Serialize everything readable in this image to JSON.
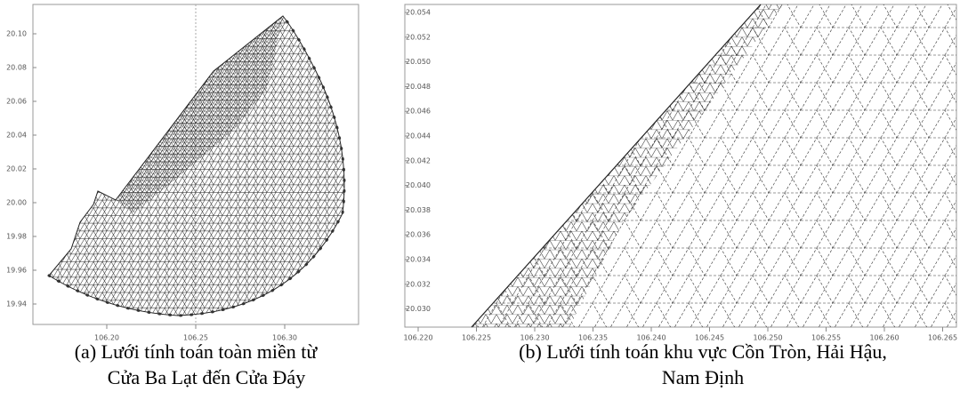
{
  "figure_a": {
    "y_ticks": [
      "20.10",
      "20.08",
      "20.06",
      "20.04",
      "20.02",
      "20.00",
      "19.98",
      "19.96",
      "19.94"
    ],
    "x_ticks": [
      "106.20",
      "106.25",
      "106.30"
    ],
    "caption": [
      "(a) Lưới tính toán toàn miền từ",
      "Cửa Ba Lạt đến Cửa Đáy"
    ]
  },
  "figure_b": {
    "y_ticks": [
      "20.054",
      "20.052",
      "20.050",
      "20.048",
      "20.046",
      "20.044",
      "20.042",
      "20.040",
      "20.038",
      "20.036",
      "20.034",
      "20.032",
      "20.030"
    ],
    "x_ticks": [
      "106.220",
      "106.225",
      "106.230",
      "106.235",
      "106.240",
      "106.245",
      "106.250",
      "106.255",
      "106.260",
      "106.265"
    ],
    "caption": [
      "(b) Lưới tính toán khu vực Cồn Tròn, Hải Hậu,",
      "Nam Định"
    ]
  }
}
